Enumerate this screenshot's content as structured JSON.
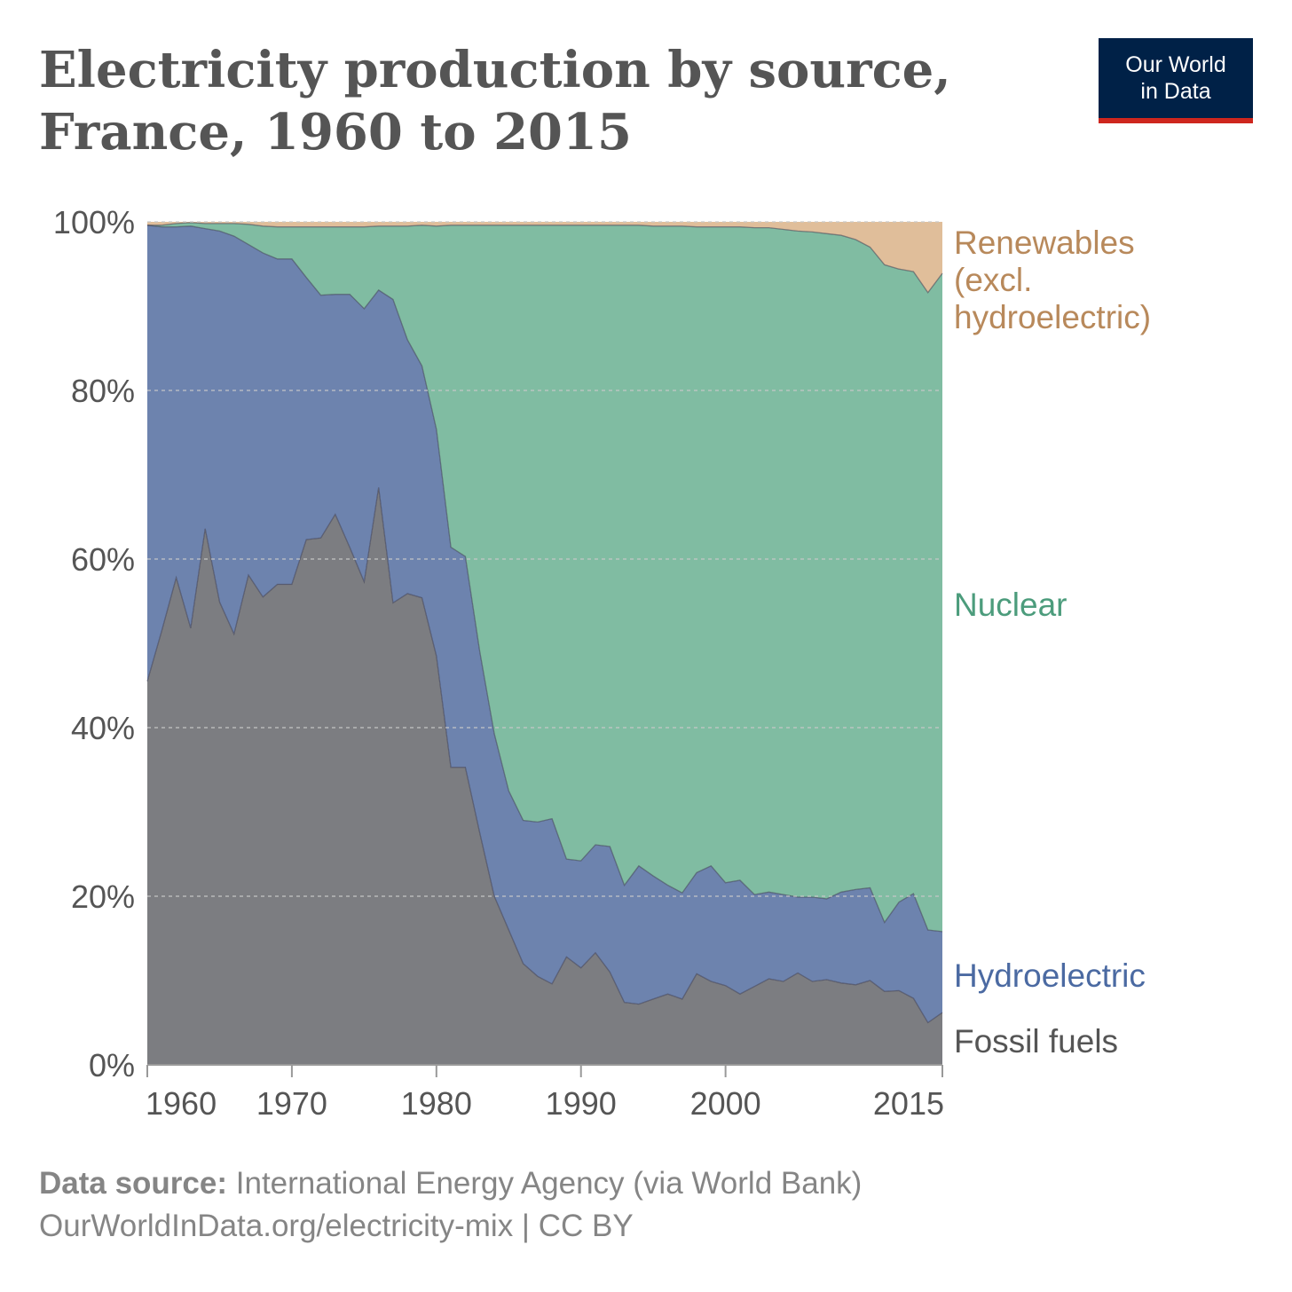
{
  "header": {
    "title_line1": "Electricity production by source,",
    "title_line2": "France, 1960 to 2015",
    "logo_line1": "Our World",
    "logo_line2": "in Data"
  },
  "footer": {
    "source_label": "Data source:",
    "source_text": "International Energy Agency (via World Bank)",
    "url_text": "OurWorldInData.org/electricity-mix | CC BY"
  },
  "colors": {
    "fossil": "#7c7d81",
    "hydro": "#6d83ae",
    "nuclear": "#80bca2",
    "renewables": "#e0be9a",
    "fossil_label": "#555555",
    "hydro_label": "#4b6aa2",
    "nuclear_label": "#4c9c7c",
    "renewables_label": "#b8895b"
  },
  "chart_data": {
    "type": "area",
    "stacked": true,
    "title": "Electricity production by source, France, 1960 to 2015",
    "xlabel": "",
    "ylabel": "",
    "xlim": [
      1960,
      2015
    ],
    "ylim": [
      0,
      100
    ],
    "y_ticks": [
      0,
      20,
      40,
      60,
      80,
      100
    ],
    "y_tick_labels": [
      "0%",
      "20%",
      "40%",
      "60%",
      "80%",
      "100%"
    ],
    "x_ticks": [
      1960,
      1970,
      1980,
      1990,
      2000,
      2015
    ],
    "x_tick_labels": [
      "1960",
      "1970",
      "1980",
      "1990",
      "2000",
      "2015"
    ],
    "x": [
      1960,
      1961,
      1962,
      1963,
      1964,
      1965,
      1966,
      1967,
      1968,
      1969,
      1970,
      1971,
      1972,
      1973,
      1974,
      1975,
      1976,
      1977,
      1978,
      1979,
      1980,
      1981,
      1982,
      1983,
      1984,
      1985,
      1986,
      1987,
      1988,
      1989,
      1990,
      1991,
      1992,
      1993,
      1994,
      1995,
      1996,
      1997,
      1998,
      1999,
      2000,
      2001,
      2002,
      2003,
      2004,
      2005,
      2006,
      2007,
      2008,
      2009,
      2010,
      2011,
      2012,
      2013,
      2014,
      2015
    ],
    "series": [
      {
        "name": "Fossil fuels",
        "label_lines": [
          "Fossil fuels"
        ],
        "values": [
          45.5,
          51.5,
          57.8,
          51.8,
          63.6,
          54.9,
          51.1,
          58.1,
          55.5,
          57.0,
          57.0,
          62.3,
          62.5,
          65.3,
          61.4,
          57.3,
          68.5,
          54.8,
          55.9,
          55.4,
          48.5,
          35.3,
          35.3,
          27.5,
          20.0,
          16.0,
          12.0,
          10.5,
          9.6,
          12.8,
          11.5,
          13.3,
          11.0,
          7.4,
          7.2,
          7.8,
          8.4,
          7.8,
          10.8,
          9.9,
          9.4,
          8.4,
          9.3,
          10.2,
          9.9,
          10.9,
          9.9,
          10.1,
          9.7,
          9.5,
          10.0,
          8.7,
          8.8,
          7.9,
          5.0,
          6.2
        ]
      },
      {
        "name": "Hydroelectric",
        "label_lines": [
          "Hydroelectric"
        ],
        "values": [
          54.1,
          47.9,
          41.6,
          47.7,
          35.6,
          44.0,
          47.2,
          39.2,
          40.8,
          38.6,
          38.6,
          31.1,
          28.8,
          26.1,
          30.0,
          32.4,
          23.4,
          36.0,
          30.1,
          27.5,
          26.9,
          26.1,
          25.0,
          21.5,
          19.3,
          16.5,
          17.0,
          18.3,
          19.6,
          11.6,
          12.7,
          12.8,
          14.9,
          13.9,
          16.4,
          14.6,
          12.9,
          12.6,
          12.0,
          13.7,
          12.2,
          13.5,
          10.9,
          10.3,
          10.3,
          9.0,
          10.0,
          9.6,
          10.8,
          11.3,
          11.0,
          8.2,
          10.5,
          12.4,
          11.0,
          9.6
        ]
      },
      {
        "name": "Nuclear",
        "label_lines": [
          "Nuclear"
        ],
        "values": [
          0.0,
          0.2,
          0.4,
          0.4,
          0.6,
          0.9,
          1.5,
          2.4,
          3.2,
          3.8,
          3.8,
          6.0,
          8.1,
          8.0,
          8.0,
          9.7,
          7.6,
          8.7,
          13.5,
          16.7,
          24.1,
          38.2,
          39.3,
          50.6,
          60.3,
          67.1,
          70.6,
          70.8,
          70.4,
          75.2,
          75.4,
          73.5,
          73.7,
          78.3,
          76.0,
          77.1,
          78.2,
          79.1,
          76.6,
          75.8,
          77.8,
          77.5,
          79.1,
          78.8,
          78.9,
          79.0,
          78.9,
          78.9,
          77.9,
          77.1,
          76.0,
          78.0,
          75.1,
          73.8,
          75.6,
          78.1
        ]
      },
      {
        "name": "Renewables (excl. hydroelectric)",
        "label_lines": [
          "Renewables",
          "(excl.",
          "hydroelectric)"
        ],
        "values": [
          0.4,
          0.4,
          0.2,
          0.1,
          0.2,
          0.2,
          0.2,
          0.3,
          0.5,
          0.6,
          0.6,
          0.6,
          0.6,
          0.6,
          0.6,
          0.6,
          0.5,
          0.5,
          0.5,
          0.4,
          0.5,
          0.4,
          0.4,
          0.4,
          0.4,
          0.4,
          0.4,
          0.4,
          0.4,
          0.4,
          0.4,
          0.4,
          0.4,
          0.4,
          0.4,
          0.5,
          0.5,
          0.5,
          0.6,
          0.6,
          0.6,
          0.6,
          0.7,
          0.7,
          0.9,
          1.1,
          1.2,
          1.4,
          1.6,
          2.1,
          3.0,
          5.1,
          5.6,
          5.9,
          8.4,
          6.1
        ]
      }
    ]
  }
}
